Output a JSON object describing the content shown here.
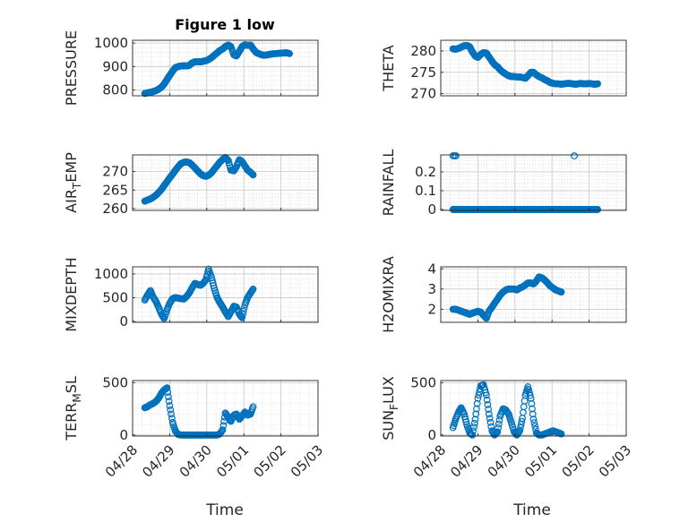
{
  "figure": {
    "title": "Figure 1 low",
    "colors": {
      "marker": "#0072bd",
      "axis": "#262626",
      "grid": "#d6d6d6",
      "background": "#ffffff"
    },
    "xlabel": "Time",
    "date_ticks": [
      "04/28",
      "04/29",
      "04/30",
      "05/01",
      "05/02",
      "05/03"
    ]
  },
  "chart_data": [
    {
      "type": "scatter",
      "ylabel": "PRESSURE",
      "yticks": [
        800,
        900,
        1000
      ],
      "ylim": [
        775,
        1012
      ],
      "xlim": [
        "04/28",
        "05/03"
      ],
      "x_days": [
        0.33,
        0.4,
        0.48,
        0.55,
        0.63,
        0.7,
        0.78,
        0.85,
        0.93,
        1.0,
        1.08,
        1.15,
        1.23,
        1.3,
        1.38,
        1.45,
        1.53,
        1.6,
        1.68,
        1.75,
        1.83,
        1.9,
        1.98,
        2.05,
        2.13,
        2.2,
        2.28,
        2.35,
        2.43,
        2.5,
        2.58,
        2.65,
        2.73,
        2.8,
        2.88,
        2.95,
        3.03,
        3.1,
        3.18,
        3.25,
        3.33,
        3.4,
        3.48,
        3.55,
        3.63,
        3.7,
        3.78,
        3.85,
        3.93,
        4.0,
        4.08,
        4.15,
        4.23
      ],
      "y": [
        785,
        788,
        790,
        793,
        797,
        803,
        812,
        825,
        845,
        862,
        880,
        895,
        900,
        902,
        903,
        902,
        905,
        915,
        920,
        921,
        920,
        922,
        925,
        930,
        938,
        948,
        958,
        968,
        975,
        985,
        992,
        985,
        950,
        945,
        965,
        985,
        993,
        990,
        992,
        975,
        960,
        955,
        950,
        948,
        950,
        952,
        954,
        955,
        956,
        957,
        958,
        959,
        955
      ],
      "series": [
        {
          "marker": "circle-open"
        }
      ]
    },
    {
      "type": "scatter",
      "ylabel": "THETA",
      "yticks": [
        270,
        275,
        280
      ],
      "ylim": [
        269.5,
        282.5
      ],
      "xlim": [
        "04/28",
        "05/03"
      ],
      "x_days": [
        0.33,
        0.4,
        0.48,
        0.55,
        0.63,
        0.7,
        0.78,
        0.85,
        0.93,
        1.0,
        1.08,
        1.15,
        1.23,
        1.3,
        1.38,
        1.45,
        1.53,
        1.6,
        1.68,
        1.75,
        1.83,
        1.9,
        1.98,
        2.05,
        2.13,
        2.2,
        2.28,
        2.35,
        2.43,
        2.5,
        2.58,
        2.65,
        2.73,
        2.8,
        2.88,
        2.95,
        3.03,
        3.1,
        3.18,
        3.25,
        3.33,
        3.4,
        3.48,
        3.55,
        3.63,
        3.7,
        3.78,
        3.85,
        3.93,
        4.0,
        4.08,
        4.15,
        4.23
      ],
      "y": [
        280.5,
        280.4,
        280.6,
        280.9,
        281.2,
        281.3,
        281.0,
        279.8,
        278.8,
        278.5,
        279.2,
        279.6,
        279.5,
        278.6,
        277.6,
        276.8,
        276.3,
        275.6,
        275.0,
        274.6,
        274.2,
        274.0,
        274.0,
        273.9,
        273.9,
        273.8,
        273.6,
        274.2,
        275.0,
        275.0,
        274.4,
        274.0,
        273.7,
        273.3,
        273.0,
        272.6,
        272.4,
        272.3,
        272.3,
        272.2,
        272.3,
        272.4,
        272.4,
        272.3,
        272.2,
        272.3,
        272.4,
        272.3,
        272.3,
        272.4,
        272.3,
        272.2,
        272.3
      ],
      "series": [
        {
          "marker": "circle-open"
        }
      ]
    },
    {
      "type": "scatter",
      "ylabel": "AIR_TEMP",
      "yticks": [
        260,
        265,
        270
      ],
      "ylim": [
        259.5,
        274.5
      ],
      "xlim": [
        "04/28",
        "05/03"
      ],
      "x_days": [
        0.33,
        0.4,
        0.48,
        0.55,
        0.63,
        0.7,
        0.78,
        0.85,
        0.93,
        1.0,
        1.08,
        1.15,
        1.23,
        1.3,
        1.38,
        1.45,
        1.53,
        1.6,
        1.68,
        1.75,
        1.83,
        1.9,
        1.98,
        2.05,
        2.13,
        2.2,
        2.28,
        2.35,
        2.43,
        2.5,
        2.58,
        2.65,
        2.73,
        2.8,
        2.88,
        2.95,
        3.03,
        3.1,
        3.18,
        3.25
      ],
      "y": [
        262.0,
        262.3,
        262.6,
        263.0,
        263.6,
        264.3,
        265.2,
        266.2,
        267.3,
        268.3,
        269.3,
        270.3,
        271.3,
        272.1,
        272.5,
        272.6,
        272.4,
        271.8,
        271.0,
        270.2,
        269.4,
        268.9,
        268.7,
        269.0,
        269.7,
        270.6,
        271.6,
        272.5,
        273.3,
        273.8,
        273.0,
        270.4,
        270.2,
        271.3,
        273.2,
        272.7,
        271.5,
        270.4,
        269.8,
        269.1
      ],
      "series": [
        {
          "marker": "circle-open"
        }
      ]
    },
    {
      "type": "scatter",
      "ylabel": "RAINFALL",
      "yticks": [
        0,
        0.1,
        0.2
      ],
      "ylim": [
        -0.005,
        0.29
      ],
      "xlim": [
        "04/28",
        "05/03"
      ],
      "x_days": [
        0.33,
        0.4,
        0.48,
        0.55,
        0.63,
        0.7,
        0.78,
        0.85,
        0.93,
        1.0,
        1.08,
        1.15,
        1.23,
        1.3,
        1.38,
        1.45,
        1.53,
        1.6,
        1.68,
        1.75,
        1.83,
        1.9,
        1.98,
        2.05,
        2.13,
        2.2,
        2.28,
        2.35,
        2.43,
        2.5,
        2.58,
        2.65,
        2.73,
        2.8,
        2.88,
        2.95,
        3.03,
        3.1,
        3.18,
        3.25,
        3.33,
        3.4,
        3.48,
        3.55,
        3.63,
        3.7,
        3.78,
        3.85,
        3.93,
        4.0,
        4.08,
        4.15,
        4.23,
        0.33,
        0.37,
        0.41,
        3.6
      ],
      "y": [
        0,
        0,
        0,
        0,
        0,
        0,
        0,
        0,
        0,
        0,
        0,
        0,
        0,
        0,
        0,
        0,
        0,
        0,
        0,
        0,
        0,
        0,
        0,
        0,
        0,
        0,
        0,
        0,
        0,
        0,
        0,
        0,
        0,
        0,
        0,
        0,
        0,
        0,
        0,
        0,
        0,
        0,
        0,
        0,
        0,
        0,
        0,
        0,
        0,
        0,
        0,
        0,
        0,
        0.285,
        0.285,
        0.285,
        0.285
      ],
      "series": [
        {
          "marker": "circle-open"
        }
      ]
    },
    {
      "type": "scatter",
      "ylabel": "MIXDEPTH",
      "yticks": [
        0,
        500,
        1000
      ],
      "ylim": [
        -20,
        1150
      ],
      "xlim": [
        "04/28",
        "05/03"
      ],
      "x_days": [
        0.33,
        0.4,
        0.48,
        0.55,
        0.63,
        0.7,
        0.78,
        0.85,
        0.93,
        1.0,
        1.08,
        1.15,
        1.23,
        1.3,
        1.38,
        1.45,
        1.53,
        1.6,
        1.68,
        1.75,
        1.83,
        1.9,
        1.98,
        2.05,
        2.13,
        2.2,
        2.28,
        2.35,
        2.43,
        2.5,
        2.58,
        2.65,
        2.73,
        2.8,
        2.88,
        2.95,
        3.03,
        3.1,
        3.18,
        3.25
      ],
      "y": [
        450,
        550,
        650,
        520,
        420,
        300,
        150,
        60,
        250,
        380,
        480,
        500,
        490,
        480,
        470,
        520,
        600,
        700,
        800,
        780,
        760,
        800,
        880,
        1100,
        920,
        700,
        500,
        400,
        300,
        200,
        100,
        200,
        320,
        300,
        150,
        80,
        350,
        500,
        600,
        680
      ],
      "series": [
        {
          "marker": "circle-open"
        }
      ]
    },
    {
      "type": "scatter",
      "ylabel": "H2OMIXRA",
      "yticks": [
        2,
        3,
        4
      ],
      "ylim": [
        1.35,
        4.1
      ],
      "xlim": [
        "04/28",
        "05/03"
      ],
      "x_days": [
        0.33,
        0.4,
        0.48,
        0.55,
        0.63,
        0.7,
        0.78,
        0.85,
        0.93,
        1.0,
        1.08,
        1.15,
        1.23,
        1.3,
        1.38,
        1.45,
        1.53,
        1.6,
        1.68,
        1.75,
        1.83,
        1.9,
        1.98,
        2.05,
        2.13,
        2.2,
        2.28,
        2.35,
        2.43,
        2.5,
        2.58,
        2.65,
        2.73,
        2.8,
        2.88,
        2.95,
        3.03,
        3.1,
        3.18,
        3.25
      ],
      "y": [
        2.0,
        2.0,
        1.95,
        1.9,
        1.85,
        1.8,
        1.75,
        1.8,
        1.85,
        1.9,
        1.85,
        1.7,
        1.55,
        1.9,
        2.1,
        2.3,
        2.5,
        2.7,
        2.85,
        2.95,
        3.0,
        3.0,
        3.0,
        2.95,
        3.05,
        3.1,
        3.2,
        3.3,
        3.3,
        3.25,
        3.4,
        3.6,
        3.55,
        3.45,
        3.3,
        3.15,
        3.05,
        2.95,
        2.9,
        2.85
      ],
      "series": [
        {
          "marker": "circle-open"
        }
      ]
    },
    {
      "type": "scatter",
      "ylabel": "TERR_MSL",
      "yticks": [
        0,
        500
      ],
      "ylim": [
        -10,
        520
      ],
      "xlim": [
        "04/28",
        "05/03"
      ],
      "x_days": [
        0.33,
        0.4,
        0.48,
        0.55,
        0.63,
        0.7,
        0.78,
        0.85,
        0.93,
        1.0,
        1.08,
        1.15,
        1.23,
        1.3,
        1.38,
        1.45,
        1.53,
        1.6,
        1.68,
        1.75,
        1.83,
        1.9,
        1.98,
        2.05,
        2.13,
        2.2,
        2.28,
        2.35,
        2.43,
        2.5,
        2.58,
        2.65,
        2.73,
        2.8,
        2.88,
        2.95,
        3.03,
        3.1,
        3.18,
        3.25
      ],
      "y": [
        260,
        270,
        290,
        300,
        320,
        350,
        400,
        430,
        450,
        280,
        120,
        40,
        5,
        0,
        0,
        0,
        0,
        0,
        0,
        0,
        0,
        0,
        0,
        0,
        0,
        0,
        0,
        10,
        50,
        210,
        170,
        130,
        190,
        200,
        150,
        180,
        220,
        190,
        200,
        270
      ],
      "series": [
        {
          "marker": "circle-open"
        }
      ]
    },
    {
      "type": "scatter",
      "ylabel": "SUN_FLUX",
      "yticks": [
        0,
        500
      ],
      "ylim": [
        -10,
        520
      ],
      "xlim": [
        "04/28",
        "05/03"
      ],
      "x_days": [
        0.33,
        0.4,
        0.48,
        0.55,
        0.63,
        0.7,
        0.78,
        0.85,
        0.93,
        1.0,
        1.08,
        1.15,
        1.23,
        1.3,
        1.38,
        1.45,
        1.53,
        1.6,
        1.68,
        1.75,
        1.83,
        1.9,
        1.98,
        2.05,
        2.13,
        2.2,
        2.28,
        2.35,
        2.43,
        2.5,
        2.58,
        2.65,
        2.73,
        2.8,
        2.88,
        2.95,
        3.03,
        3.1,
        3.18,
        3.25
      ],
      "y": [
        70,
        150,
        220,
        260,
        200,
        100,
        20,
        0,
        150,
        350,
        470,
        480,
        380,
        200,
        40,
        0,
        30,
        180,
        250,
        240,
        200,
        120,
        30,
        0,
        40,
        160,
        380,
        460,
        350,
        150,
        20,
        0,
        0,
        10,
        20,
        30,
        40,
        30,
        20,
        10
      ],
      "series": [
        {
          "marker": "circle-open"
        }
      ]
    }
  ]
}
